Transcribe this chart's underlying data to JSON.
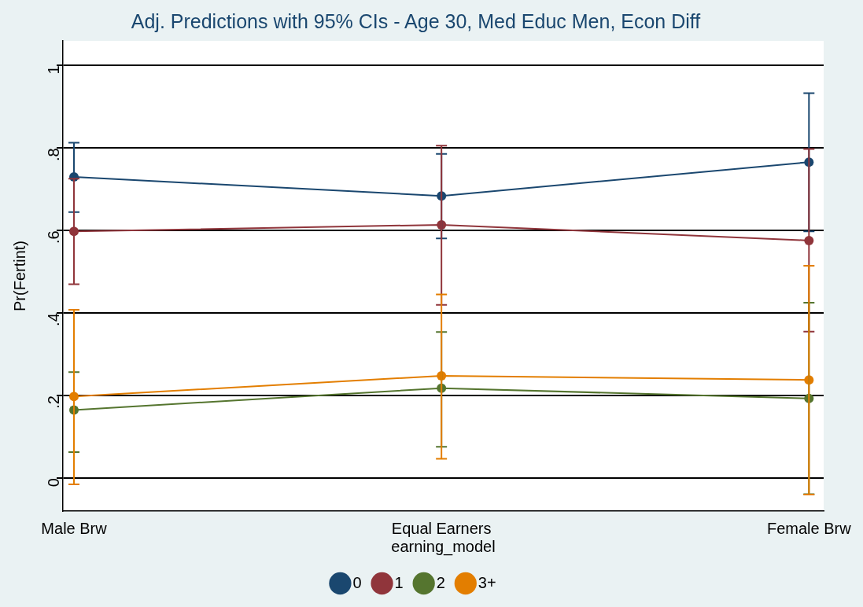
{
  "chart_data": {
    "type": "line",
    "title": "Adj. Predictions with 95% CIs - Age 30, Med Educ Men, Econ Diff",
    "xlabel": "earning_model",
    "ylabel": "Pr(Fertint)",
    "categories": [
      "Male Brw",
      "Equal Earners",
      "Female Brw"
    ],
    "series": [
      {
        "name": "0",
        "color": "#1a476f",
        "values": [
          0.73,
          0.684,
          0.766
        ],
        "errors": [
          [
            0.645,
            0.813
          ],
          [
            0.581,
            0.786
          ],
          [
            0.598,
            0.933
          ]
        ]
      },
      {
        "name": "1",
        "color": "#90353b",
        "values": [
          0.598,
          0.614,
          0.576
        ],
        "errors": [
          [
            0.47,
            0.726
          ],
          [
            0.42,
            0.806
          ],
          [
            0.355,
            0.798
          ]
        ]
      },
      {
        "name": "2",
        "color": "#55752f",
        "values": [
          0.165,
          0.218,
          0.193
        ],
        "errors": [
          [
            0.063,
            0.257
          ],
          [
            0.076,
            0.354
          ],
          [
            -0.039,
            0.425
          ]
        ]
      },
      {
        "name": "3+",
        "color": "#e37e00",
        "values": [
          0.198,
          0.248,
          0.238
        ],
        "errors": [
          [
            -0.015,
            0.408
          ],
          [
            0.047,
            0.445
          ],
          [
            -0.04,
            0.515
          ]
        ]
      }
    ],
    "ylim": [
      -0.08,
      1.06
    ],
    "yticks": [
      0,
      {
        "value": 0.2,
        "label": ".2"
      },
      {
        "value": 0.4,
        "label": ".4"
      },
      {
        "value": 0.6,
        "label": ".6"
      },
      {
        "value": 0.8,
        "label": ".8"
      },
      1
    ],
    "grid": "y",
    "legend": "bottom",
    "marker": "circle",
    "line_style": "solid"
  }
}
